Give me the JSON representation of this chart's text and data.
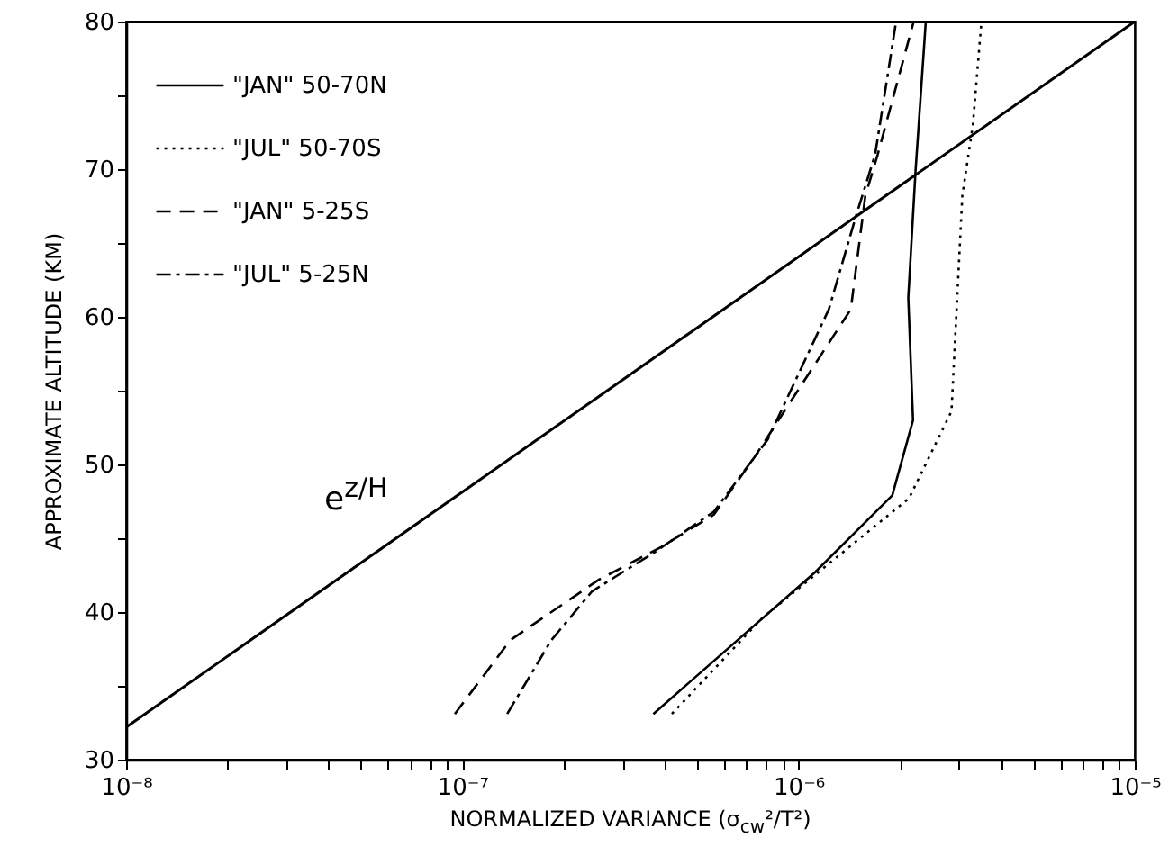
{
  "chart_data": {
    "type": "line",
    "xlabel": "NORMALIZED VARIANCE (σ$_{cw}$²/T²)",
    "ylabel": "APPROXIMATE ALTITUDE (KM)",
    "log": "x",
    "xlim": [
      1e-08,
      1e-05
    ],
    "ylim": [
      30,
      80
    ],
    "xticks": [
      {
        "value": 1e-08,
        "label": "10⁻⁸"
      },
      {
        "value": 2e-08,
        "label": null
      },
      {
        "value": 3e-08,
        "label": null
      },
      {
        "value": 4e-08,
        "label": null
      },
      {
        "value": 5e-08,
        "label": null
      },
      {
        "value": 6e-08,
        "label": null
      },
      {
        "value": 7e-08,
        "label": null
      },
      {
        "value": 8e-08,
        "label": null
      },
      {
        "value": 9e-08,
        "label": null
      },
      {
        "value": 1e-07,
        "label": "10⁻⁷"
      },
      {
        "value": 2e-07,
        "label": null
      },
      {
        "value": 3e-07,
        "label": null
      },
      {
        "value": 4e-07,
        "label": null
      },
      {
        "value": 5e-07,
        "label": null
      },
      {
        "value": 6e-07,
        "label": null
      },
      {
        "value": 7e-07,
        "label": null
      },
      {
        "value": 8e-07,
        "label": null
      },
      {
        "value": 9e-07,
        "label": null
      },
      {
        "value": 1e-06,
        "label": "10⁻⁶"
      },
      {
        "value": 2e-06,
        "label": null
      },
      {
        "value": 3e-06,
        "label": null
      },
      {
        "value": 4e-06,
        "label": null
      },
      {
        "value": 5e-06,
        "label": null
      },
      {
        "value": 6e-06,
        "label": null
      },
      {
        "value": 7e-06,
        "label": null
      },
      {
        "value": 8e-06,
        "label": null
      },
      {
        "value": 9e-06,
        "label": null
      },
      {
        "value": 1e-05,
        "label": "10⁻⁵"
      }
    ],
    "yticks": [
      30,
      {
        "value": 35,
        "label": null
      },
      40,
      {
        "value": 45,
        "label": null
      },
      50,
      {
        "value": 55,
        "label": null
      },
      60,
      {
        "value": 65,
        "label": null
      },
      70,
      {
        "value": 75,
        "label": null
      },
      80
    ],
    "grid": false,
    "legend": "top left",
    "marker": "none",
    "annotations": [
      "e$^{z/H}$"
    ],
    "series": [
      {
        "name": "\"JAN\" 50-70N",
        "color": "#000000",
        "line_style": "solid",
        "x": [
          3.7e-07,
          1.12e-06,
          1.9e-06,
          2.19e-06,
          2.12e-06,
          2.23e-06,
          2.39e-06
        ],
        "values": [
          33.1,
          42.7,
          47.9,
          53,
          61.3,
          70,
          80
        ]
      },
      {
        "name": "\"JUL\" 50-70S",
        "color": "#000000",
        "line_style": "dotted",
        "x": [
          4.2e-07,
          7.8e-07,
          2.13e-06,
          2.85e-06,
          3.07e-06,
          3.3e-06,
          3.5e-06
        ],
        "values": [
          33.1,
          39.6,
          47.7,
          53.6,
          68.2,
          73,
          80
        ]
      },
      {
        "name": "\"JAN\" 5-25S",
        "color": "#000000",
        "line_style": "dashed",
        "x": [
          9.5e-08,
          1.39e-07,
          1.84e-07,
          2.55e-07,
          3.9e-07,
          5.6e-07,
          7.4e-07,
          8.6e-07,
          1.43e-06,
          1.58e-06,
          1.72e-06,
          2.2e-06
        ],
        "values": [
          33.1,
          38.1,
          40,
          42.2,
          44.4,
          46.6,
          50.5,
          52.8,
          60.5,
          68.2,
          71,
          80
        ]
      },
      {
        "name": "\"JUL\" 5-25N",
        "color": "#000000",
        "line_style": "dashdot",
        "x": [
          1.36e-07,
          1.84e-07,
          2.43e-07,
          3.7e-07,
          5.6e-07,
          8.1e-07,
          1.23e-06,
          1.49e-06,
          1.69e-06,
          1.95e-06
        ],
        "values": [
          33.1,
          38.1,
          41.4,
          44,
          46.8,
          51.7,
          60.5,
          67,
          71,
          80
        ]
      },
      {
        "color": "#000000",
        "line_style": "solid",
        "x": [
          1e-08,
          1e-05
        ],
        "values": [
          32.2,
          80
        ]
      }
    ]
  }
}
